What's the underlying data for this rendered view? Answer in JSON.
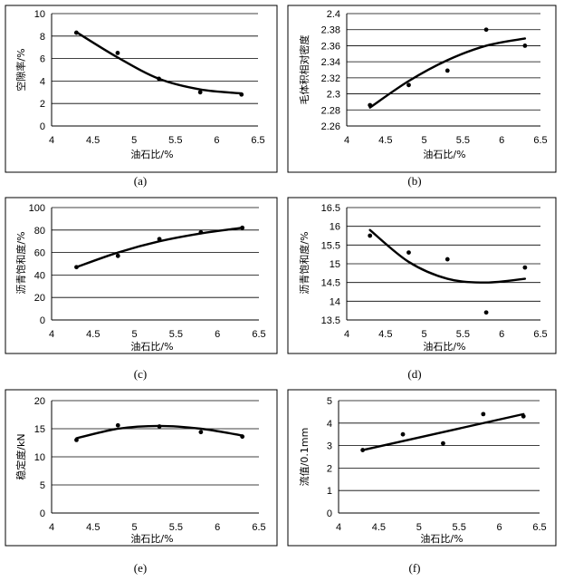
{
  "chart_data": [
    {
      "type": "scatter",
      "panel": "(a)",
      "xlabel": "油石比/%",
      "ylabel": "空隙率/%",
      "xlim": [
        4,
        6.5
      ],
      "ylim": [
        0,
        10
      ],
      "xticks": [
        4,
        4.5,
        5,
        5.5,
        6,
        6.5
      ],
      "xtick_labels": [
        "4",
        "4.5",
        "5",
        "5.5",
        "6",
        "6.5"
      ],
      "yticks": [
        0,
        2,
        4,
        6,
        8,
        10
      ],
      "ytick_labels": [
        "0",
        "2",
        "4",
        "6",
        "8",
        "10"
      ],
      "grid": "horizontal",
      "x": [
        4.3,
        4.8,
        5.3,
        5.8,
        6.3
      ],
      "y": [
        8.3,
        6.5,
        4.2,
        3.0,
        2.8
      ],
      "fit": {
        "kind": "quadratic",
        "x": [
          4.3,
          4.8,
          5.3,
          5.8,
          6.3
        ],
        "y": [
          8.35,
          6.1,
          4.2,
          3.25,
          2.9
        ]
      }
    },
    {
      "type": "scatter",
      "panel": "(b)",
      "xlabel": "油石比/%",
      "ylabel": "毛体积相对密度",
      "xlim": [
        4,
        6.5
      ],
      "ylim": [
        2.26,
        2.4
      ],
      "xticks": [
        4,
        4.5,
        5,
        5.5,
        6,
        6.5
      ],
      "xtick_labels": [
        "4",
        "4.5",
        "5",
        "5.5",
        "6",
        "6.5"
      ],
      "yticks": [
        2.26,
        2.28,
        2.3,
        2.32,
        2.34,
        2.36,
        2.38,
        2.4
      ],
      "ytick_labels": [
        "2.26",
        "2.28",
        "2.3",
        "2.32",
        "2.34",
        "2.36",
        "2.38",
        "2.4"
      ],
      "grid": "horizontal",
      "x": [
        4.3,
        4.8,
        5.3,
        5.8,
        6.3
      ],
      "y": [
        2.286,
        2.311,
        2.329,
        2.38,
        2.36
      ],
      "fit": {
        "kind": "quadratic",
        "x": [
          4.3,
          4.8,
          5.3,
          5.8,
          6.3
        ],
        "y": [
          2.283,
          2.316,
          2.342,
          2.36,
          2.369
        ]
      }
    },
    {
      "type": "scatter",
      "panel": "(c)",
      "xlabel": "油石比/%",
      "ylabel": "沥青饱和度/%",
      "xlim": [
        4,
        6.5
      ],
      "ylim": [
        0,
        100
      ],
      "xticks": [
        4,
        4.5,
        5,
        5.5,
        6,
        6.5
      ],
      "xtick_labels": [
        "4",
        "4.5",
        "5",
        "5.5",
        "6",
        "6.5"
      ],
      "yticks": [
        0,
        20,
        40,
        60,
        80,
        100
      ],
      "ytick_labels": [
        "0",
        "20",
        "40",
        "60",
        "80",
        "100"
      ],
      "grid": "horizontal",
      "x": [
        4.3,
        4.8,
        5.3,
        5.8,
        6.3
      ],
      "y": [
        47,
        57,
        72,
        78,
        82
      ],
      "fit": {
        "kind": "quadratic",
        "x": [
          4.3,
          4.8,
          5.3,
          5.8,
          6.3
        ],
        "y": [
          47,
          60,
          70,
          77,
          82
        ]
      }
    },
    {
      "type": "scatter",
      "panel": "(d)",
      "xlabel": "油石比/%",
      "ylabel": "沥青饱和度/%",
      "xlim": [
        4,
        6.5
      ],
      "ylim": [
        13.5,
        16.5
      ],
      "xticks": [
        4,
        4.5,
        5,
        5.5,
        6,
        6.5
      ],
      "xtick_labels": [
        "4",
        "4.5",
        "5",
        "5.5",
        "6",
        "6.5"
      ],
      "yticks": [
        13.5,
        14,
        14.5,
        15,
        15.5,
        16,
        16.5
      ],
      "ytick_labels": [
        "13.5",
        "14",
        "14.5",
        "15",
        "15.5",
        "16",
        "16.5"
      ],
      "grid": "horizontal",
      "x": [
        4.3,
        4.8,
        5.3,
        5.8,
        6.3
      ],
      "y": [
        15.75,
        15.3,
        15.12,
        13.7,
        14.9
      ],
      "fit": {
        "kind": "quadratic",
        "x": [
          4.3,
          4.8,
          5.3,
          5.8,
          6.3
        ],
        "y": [
          15.9,
          15.05,
          14.6,
          14.5,
          14.6
        ]
      }
    },
    {
      "type": "scatter",
      "panel": "(e)",
      "xlabel": "油石比/%",
      "ylabel": "稳定度/kN",
      "xlim": [
        4,
        6.5
      ],
      "ylim": [
        0,
        20
      ],
      "xticks": [
        4,
        4.5,
        5,
        5.5,
        6,
        6.5
      ],
      "xtick_labels": [
        "4",
        "4.5",
        "5",
        "5.5",
        "6",
        "6.5"
      ],
      "yticks": [
        0,
        5,
        10,
        15,
        20
      ],
      "ytick_labels": [
        "0",
        "5",
        "10",
        "15",
        "20"
      ],
      "grid": "horizontal",
      "x": [
        4.3,
        4.8,
        5.3,
        5.8,
        6.3
      ],
      "y": [
        13.0,
        15.6,
        15.4,
        14.4,
        13.6
      ],
      "fit": {
        "kind": "quadratic",
        "x": [
          4.3,
          4.8,
          5.3,
          5.8,
          6.3
        ],
        "y": [
          13.3,
          15.0,
          15.5,
          15.0,
          13.8
        ]
      }
    },
    {
      "type": "scatter",
      "panel": "(f)",
      "xlabel": "油石比/%",
      "ylabel": "流值/0.1mm",
      "xlim": [
        4,
        6.5
      ],
      "ylim": [
        0,
        5
      ],
      "xticks": [
        4,
        4.5,
        5,
        5.5,
        6,
        6.5
      ],
      "xtick_labels": [
        "4",
        "4.5",
        "5",
        "5.5",
        "6",
        "6.5"
      ],
      "yticks": [
        0,
        1,
        2,
        3,
        4,
        5
      ],
      "ytick_labels": [
        "0",
        "1",
        "2",
        "3",
        "4",
        "5"
      ],
      "grid": "horizontal",
      "x": [
        4.3,
        4.8,
        5.3,
        5.8,
        6.3
      ],
      "y": [
        2.8,
        3.5,
        3.1,
        4.4,
        4.3
      ],
      "fit": {
        "kind": "linear",
        "x": [
          4.3,
          6.3
        ],
        "y": [
          2.8,
          4.4
        ]
      }
    }
  ]
}
